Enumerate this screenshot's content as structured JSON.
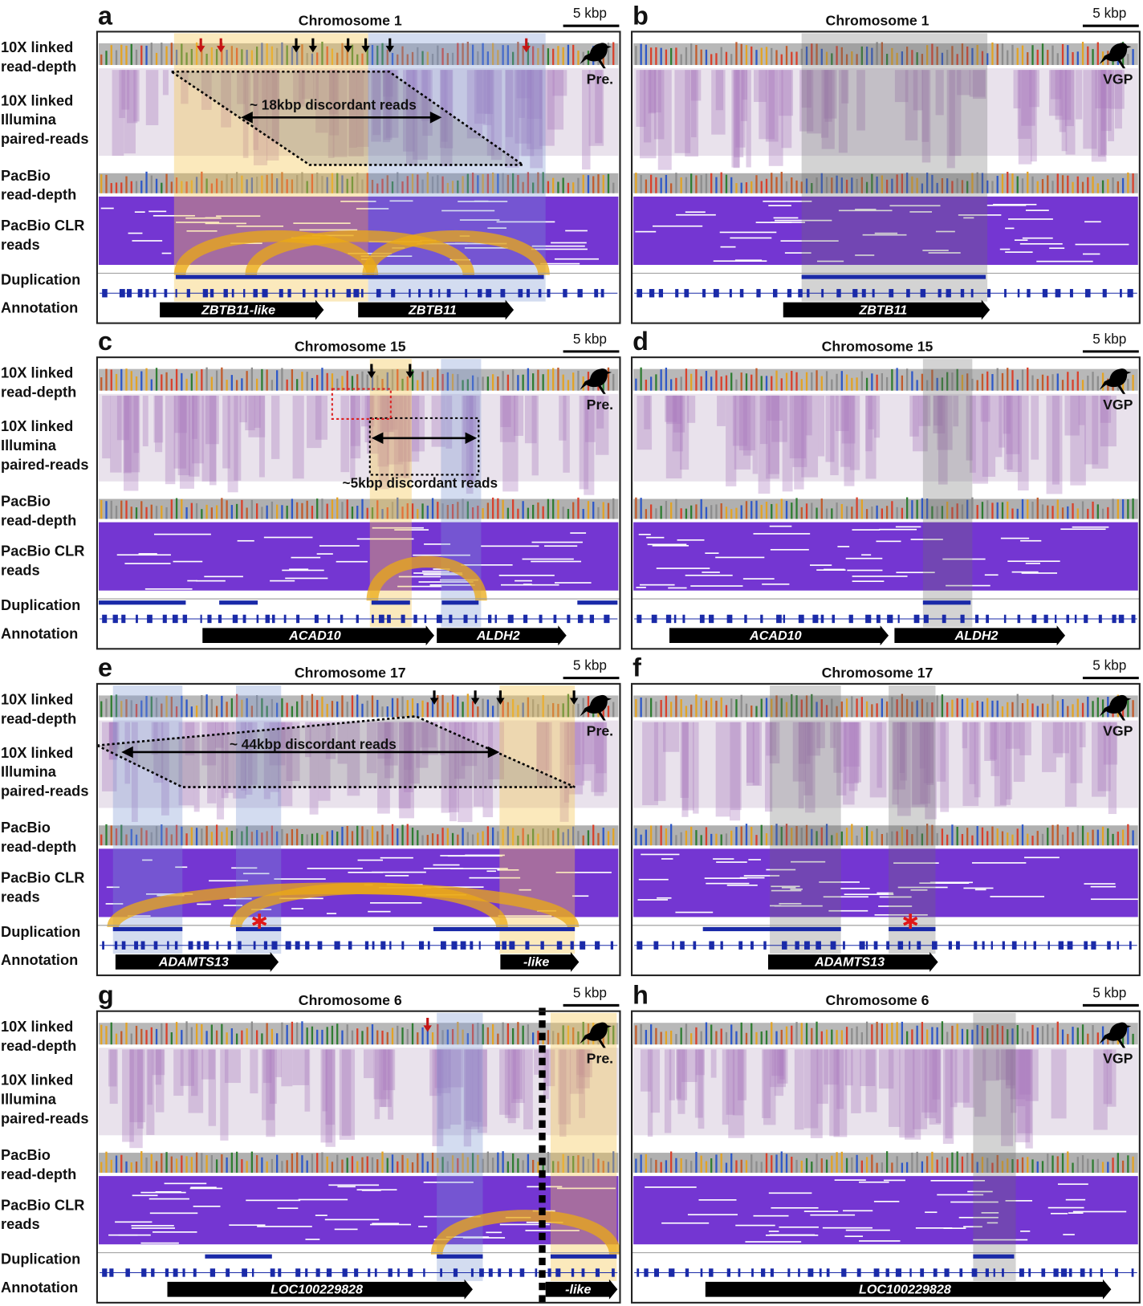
{
  "track_labels": [
    [
      "10X linked",
      "read-depth"
    ],
    [
      "10X linked",
      "Illumina",
      "paired-reads"
    ],
    [
      "PacBio",
      "read-depth"
    ],
    [
      "PacBio CLR",
      "reads"
    ],
    [
      "Duplication"
    ],
    [
      "Annotation"
    ]
  ],
  "panels": [
    {
      "letter": "a",
      "title": "Chromosome 1",
      "scale": "5 kbp",
      "badge": "Pre.",
      "genes": [
        "ZBTB11-like",
        "ZBTB11"
      ],
      "discordant": "~ 18kbp discordant reads"
    },
    {
      "letter": "b",
      "title": "Chromosome 1",
      "scale": "5 kbp",
      "badge": "VGP",
      "genes": [
        "ZBTB11"
      ]
    },
    {
      "letter": "c",
      "title": "Chromosome 15",
      "scale": "5 kbp",
      "badge": "Pre.",
      "genes": [
        "ACAD10",
        "ALDH2"
      ],
      "discordant": "~5kbp discordant reads"
    },
    {
      "letter": "d",
      "title": "Chromosome 15",
      "scale": "5 kbp",
      "badge": "VGP",
      "genes": [
        "ACAD10",
        "ALDH2"
      ]
    },
    {
      "letter": "e",
      "title": "Chromosome 17",
      "scale": "5 kbp",
      "badge": "Pre.",
      "genes": [
        "ADAMTS13",
        "-like"
      ],
      "discordant": "~ 44kbp discordant reads"
    },
    {
      "letter": "f",
      "title": "Chromosome 17",
      "scale": "5 kbp",
      "badge": "VGP",
      "genes": [
        "ADAMTS13"
      ]
    },
    {
      "letter": "g",
      "title": "Chromosome 6",
      "scale": "5 kbp",
      "badge": "Pre.",
      "genes": [
        "LOC100229828",
        "-like"
      ]
    },
    {
      "letter": "h",
      "title": "Chromosome 6",
      "scale": "5 kbp",
      "badge": "VGP",
      "genes": [
        "LOC100229828"
      ]
    }
  ]
}
